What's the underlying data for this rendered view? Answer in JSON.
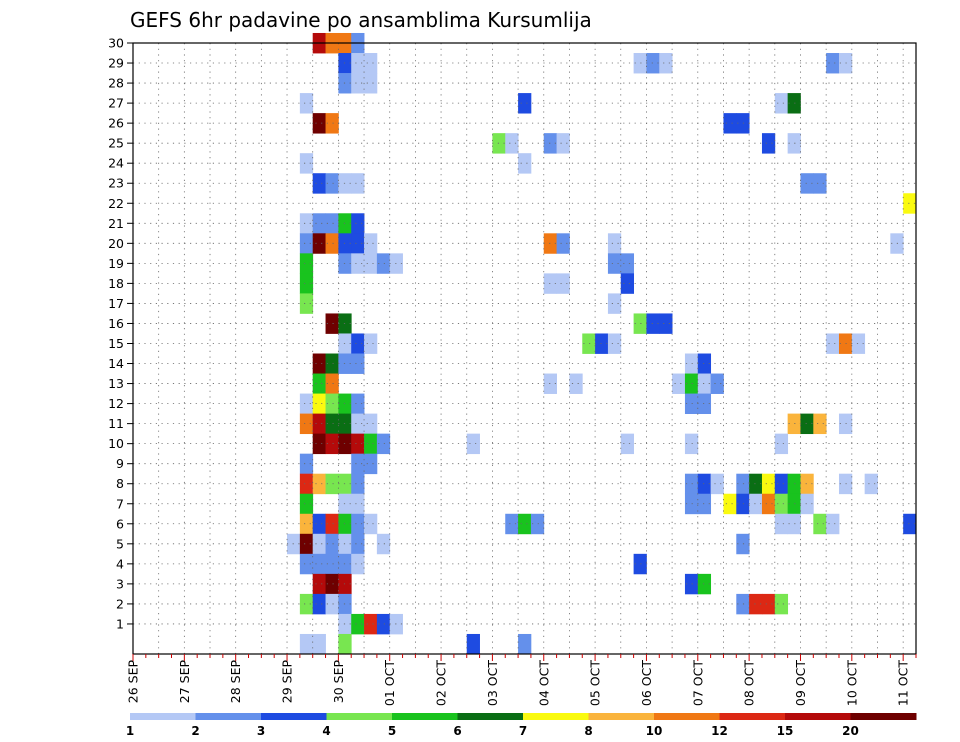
{
  "chart_data": {
    "type": "heatmap",
    "title": "GEFS 6hr padavine po ansamblima Kursumlija",
    "x_ticks": [
      "26 SEP",
      "27 SEP",
      "28 SEP",
      "29 SEP",
      "30 SEP",
      "01 OCT",
      "02 OCT",
      "03 OCT",
      "04 OCT",
      "05 OCT",
      "06 OCT",
      "07 OCT",
      "08 OCT",
      "09 OCT",
      "10 OCT",
      "11 OCT"
    ],
    "x_range": [
      "2019-09-26 00Z",
      "2019-10-11 06Z"
    ],
    "x_step": "6hr",
    "y_ticks": [
      1,
      2,
      3,
      4,
      5,
      6,
      7,
      8,
      9,
      10,
      11,
      12,
      13,
      14,
      15,
      16,
      17,
      18,
      19,
      20,
      21,
      22,
      23,
      24,
      25,
      26,
      27,
      28,
      29,
      30
    ],
    "y_range": [
      0,
      30
    ],
    "grid": true,
    "colorbar": {
      "labels": [
        "1",
        "2",
        "3",
        "4",
        "5",
        "6",
        "7",
        "8",
        "10",
        "12",
        "15",
        "20"
      ],
      "colors": [
        "#b4c8f5",
        "#6490eb",
        "#1e4be1",
        "#78e650",
        "#19c31e",
        "#0a6e14",
        "#fafa0f",
        "#fab43c",
        "#f07814",
        "#dc2814",
        "#b40a0a",
        "#6e0000"
      ]
    },
    "cells_note": "cells: [ensemble member, 6hr step index from 26 SEP 00Z, color class 0-11]",
    "cells": [
      [
        30,
        14,
        10
      ],
      [
        30,
        15,
        8
      ],
      [
        30,
        16,
        8
      ],
      [
        30,
        17,
        1
      ],
      [
        29,
        16,
        2
      ],
      [
        29,
        17,
        0
      ],
      [
        29,
        18,
        0
      ],
      [
        29,
        39,
        0
      ],
      [
        29,
        40,
        1
      ],
      [
        29,
        41,
        0
      ],
      [
        29,
        54,
        1
      ],
      [
        29,
        55,
        0
      ],
      [
        28,
        16,
        1
      ],
      [
        28,
        17,
        0
      ],
      [
        28,
        18,
        0
      ],
      [
        27,
        13,
        0
      ],
      [
        27,
        30,
        2
      ],
      [
        27,
        50,
        0
      ],
      [
        27,
        51,
        5
      ],
      [
        26,
        14,
        11
      ],
      [
        26,
        15,
        8
      ],
      [
        26,
        46,
        2
      ],
      [
        26,
        47,
        2
      ],
      [
        25,
        28,
        3
      ],
      [
        25,
        29,
        0
      ],
      [
        25,
        32,
        1
      ],
      [
        25,
        33,
        0
      ],
      [
        25,
        49,
        2
      ],
      [
        25,
        51,
        0
      ],
      [
        24,
        13,
        0
      ],
      [
        24,
        30,
        0
      ],
      [
        23,
        14,
        2
      ],
      [
        23,
        15,
        1
      ],
      [
        23,
        16,
        0
      ],
      [
        23,
        17,
        0
      ],
      [
        23,
        52,
        1
      ],
      [
        23,
        53,
        1
      ],
      [
        22,
        60,
        6
      ],
      [
        21,
        13,
        0
      ],
      [
        21,
        14,
        1
      ],
      [
        21,
        15,
        1
      ],
      [
        21,
        16,
        4
      ],
      [
        21,
        17,
        2
      ],
      [
        20,
        13,
        1
      ],
      [
        20,
        14,
        11
      ],
      [
        20,
        15,
        8
      ],
      [
        20,
        16,
        2
      ],
      [
        20,
        17,
        2
      ],
      [
        20,
        18,
        0
      ],
      [
        20,
        32,
        8
      ],
      [
        20,
        33,
        1
      ],
      [
        20,
        37,
        0
      ],
      [
        20,
        59,
        0
      ],
      [
        19,
        13,
        4
      ],
      [
        19,
        16,
        1
      ],
      [
        19,
        17,
        0
      ],
      [
        19,
        18,
        0
      ],
      [
        19,
        19,
        1
      ],
      [
        19,
        20,
        0
      ],
      [
        19,
        37,
        1
      ],
      [
        19,
        38,
        1
      ],
      [
        18,
        13,
        4
      ],
      [
        18,
        32,
        0
      ],
      [
        18,
        33,
        0
      ],
      [
        18,
        38,
        2
      ],
      [
        17,
        13,
        3
      ],
      [
        17,
        37,
        0
      ],
      [
        16,
        15,
        11
      ],
      [
        16,
        16,
        5
      ],
      [
        16,
        39,
        3
      ],
      [
        16,
        40,
        2
      ],
      [
        16,
        41,
        2
      ],
      [
        15,
        16,
        0
      ],
      [
        15,
        17,
        2
      ],
      [
        15,
        18,
        0
      ],
      [
        15,
        35,
        3
      ],
      [
        15,
        36,
        2
      ],
      [
        15,
        37,
        0
      ],
      [
        15,
        54,
        0
      ],
      [
        15,
        55,
        8
      ],
      [
        15,
        56,
        0
      ],
      [
        14,
        14,
        11
      ],
      [
        14,
        15,
        5
      ],
      [
        14,
        16,
        1
      ],
      [
        14,
        17,
        1
      ],
      [
        14,
        43,
        0
      ],
      [
        14,
        44,
        2
      ],
      [
        13,
        14,
        4
      ],
      [
        13,
        15,
        8
      ],
      [
        13,
        32,
        0
      ],
      [
        13,
        34,
        0
      ],
      [
        13,
        42,
        0
      ],
      [
        13,
        43,
        4
      ],
      [
        13,
        44,
        0
      ],
      [
        13,
        45,
        1
      ],
      [
        12,
        13,
        0
      ],
      [
        12,
        14,
        6
      ],
      [
        12,
        15,
        3
      ],
      [
        12,
        16,
        4
      ],
      [
        12,
        17,
        1
      ],
      [
        12,
        43,
        1
      ],
      [
        12,
        44,
        1
      ],
      [
        11,
        13,
        8
      ],
      [
        11,
        14,
        10
      ],
      [
        11,
        15,
        5
      ],
      [
        11,
        16,
        5
      ],
      [
        11,
        17,
        0
      ],
      [
        11,
        18,
        0
      ],
      [
        11,
        51,
        7
      ],
      [
        11,
        52,
        5
      ],
      [
        11,
        53,
        7
      ],
      [
        11,
        55,
        0
      ],
      [
        10,
        14,
        11
      ],
      [
        10,
        15,
        10
      ],
      [
        10,
        16,
        11
      ],
      [
        10,
        17,
        10
      ],
      [
        10,
        18,
        4
      ],
      [
        10,
        19,
        1
      ],
      [
        10,
        26,
        0
      ],
      [
        10,
        38,
        0
      ],
      [
        10,
        43,
        0
      ],
      [
        10,
        50,
        0
      ],
      [
        9,
        13,
        1
      ],
      [
        9,
        17,
        1
      ],
      [
        9,
        18,
        1
      ],
      [
        8,
        13,
        9
      ],
      [
        8,
        14,
        7
      ],
      [
        8,
        15,
        3
      ],
      [
        8,
        16,
        3
      ],
      [
        8,
        17,
        1
      ],
      [
        8,
        43,
        1
      ],
      [
        8,
        44,
        2
      ],
      [
        8,
        45,
        0
      ],
      [
        8,
        47,
        1
      ],
      [
        8,
        48,
        5
      ],
      [
        8,
        49,
        6
      ],
      [
        8,
        50,
        2
      ],
      [
        8,
        51,
        4
      ],
      [
        8,
        52,
        7
      ],
      [
        8,
        55,
        0
      ],
      [
        8,
        57,
        0
      ],
      [
        7,
        13,
        4
      ],
      [
        7,
        16,
        0
      ],
      [
        7,
        17,
        0
      ],
      [
        7,
        43,
        1
      ],
      [
        7,
        44,
        1
      ],
      [
        7,
        46,
        6
      ],
      [
        7,
        47,
        2
      ],
      [
        7,
        48,
        0
      ],
      [
        7,
        49,
        8
      ],
      [
        7,
        50,
        3
      ],
      [
        7,
        51,
        4
      ],
      [
        7,
        52,
        0
      ],
      [
        6,
        13,
        7
      ],
      [
        6,
        14,
        2
      ],
      [
        6,
        15,
        9
      ],
      [
        6,
        16,
        4
      ],
      [
        6,
        17,
        1
      ],
      [
        6,
        18,
        0
      ],
      [
        6,
        29,
        1
      ],
      [
        6,
        30,
        4
      ],
      [
        6,
        31,
        1
      ],
      [
        6,
        50,
        0
      ],
      [
        6,
        51,
        0
      ],
      [
        6,
        53,
        3
      ],
      [
        6,
        54,
        0
      ],
      [
        6,
        60,
        2
      ],
      [
        5,
        12,
        0
      ],
      [
        5,
        13,
        11
      ],
      [
        5,
        14,
        0
      ],
      [
        5,
        15,
        1
      ],
      [
        5,
        16,
        0
      ],
      [
        5,
        17,
        1
      ],
      [
        5,
        19,
        0
      ],
      [
        5,
        47,
        1
      ],
      [
        4,
        13,
        1
      ],
      [
        4,
        14,
        1
      ],
      [
        4,
        15,
        1
      ],
      [
        4,
        16,
        1
      ],
      [
        4,
        17,
        0
      ],
      [
        4,
        39,
        2
      ],
      [
        3,
        14,
        10
      ],
      [
        3,
        15,
        11
      ],
      [
        3,
        16,
        10
      ],
      [
        3,
        43,
        2
      ],
      [
        3,
        44,
        4
      ],
      [
        2,
        13,
        3
      ],
      [
        2,
        14,
        2
      ],
      [
        2,
        15,
        0
      ],
      [
        2,
        16,
        1
      ],
      [
        2,
        47,
        1
      ],
      [
        2,
        48,
        9
      ],
      [
        2,
        49,
        9
      ],
      [
        2,
        50,
        3
      ],
      [
        1,
        16,
        0
      ],
      [
        1,
        17,
        4
      ],
      [
        1,
        18,
        9
      ],
      [
        1,
        19,
        2
      ],
      [
        1,
        20,
        0
      ],
      [
        0,
        13,
        0
      ],
      [
        0,
        14,
        0
      ],
      [
        0,
        16,
        3
      ],
      [
        0,
        26,
        2
      ],
      [
        0,
        30,
        1
      ]
    ]
  }
}
